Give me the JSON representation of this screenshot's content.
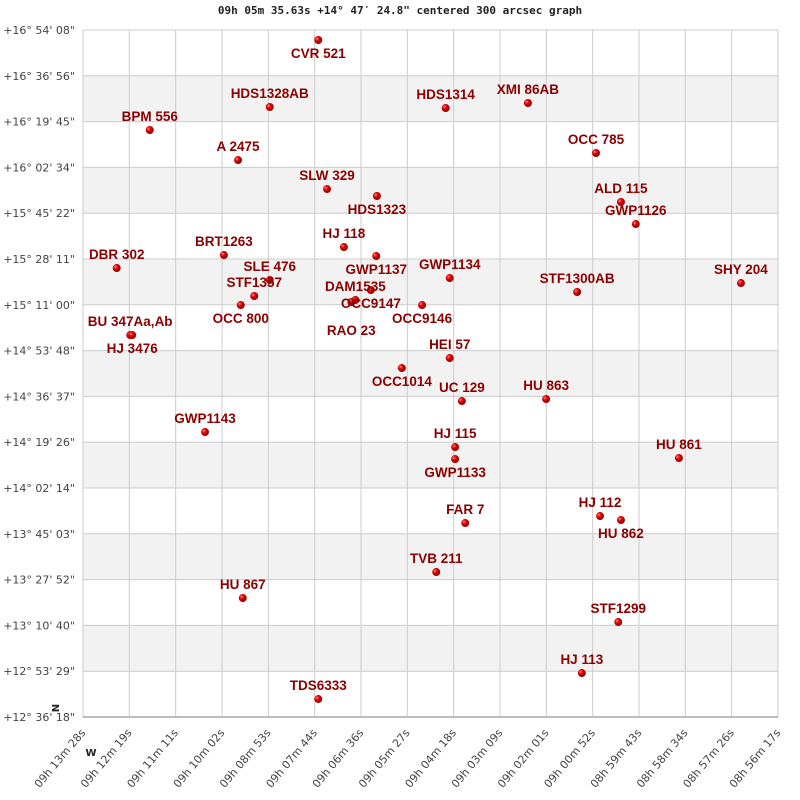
{
  "chart_data": {
    "type": "scatter",
    "title": "09h 05m 35.63s +14° 47′ 24.8\" centered 300 arcsec graph",
    "xlabel": "",
    "ylabel": "",
    "x_axis": {
      "unit": "RA",
      "range": [
        "09:13:28",
        "08:56:17"
      ],
      "reversed": true,
      "ticks": [
        "09h 13m 28s",
        "09h 12m 19s",
        "09h 11m 11s",
        "09h 10m 02s",
        "09h 08m 53s",
        "09h 07m 44s",
        "09h 06m 36s",
        "09h 05m 27s",
        "09h 04m 18s",
        "09h 03m 09s",
        "09h 02m 01s",
        "09h 00m 52s",
        "08h 59m 43s",
        "08h 58m 34s",
        "08h 57m 26s",
        "08h 56m 17s"
      ]
    },
    "y_axis": {
      "unit": "Dec",
      "range": [
        "+12:36:18",
        "+16:54:08"
      ],
      "ticks": [
        "+16° 54' 08\"",
        "+16° 36' 56\"",
        "+16° 19' 45\"",
        "+16° 02' 34\"",
        "+15° 45' 22\"",
        "+15° 28' 11\"",
        "+15° 11' 00\"",
        "+14° 53' 48\"",
        "+14° 36' 37\"",
        "+14° 19' 26\"",
        "+14° 02' 14\"",
        "+13° 45' 03\"",
        "+13° 27' 52\"",
        "+13° 10' 40\"",
        "+12° 53' 29\"",
        "+12° 36' 18\""
      ]
    },
    "grid": true,
    "compass": {
      "north": "N",
      "west": "W"
    },
    "colors": {
      "point": "#cc0000",
      "label": "#8b0000",
      "band": "#f2f2f2",
      "grid": "#cccccc"
    },
    "points": [
      {
        "label": "CVR 521",
        "ra": "09:07:39",
        "dec": "+16:50:23"
      },
      {
        "label": "HDS1328AB",
        "ra": "09:08:51",
        "dec": "+16:25:14"
      },
      {
        "label": "HDS1314",
        "ra": "09:04:30",
        "dec": "+16:24:51"
      },
      {
        "label": "XMI  86AB",
        "ra": "09:02:28",
        "dec": "+16:26:44"
      },
      {
        "label": "BPM 556",
        "ra": "09:11:49",
        "dec": "+16:16:36"
      },
      {
        "label": "A  2475",
        "ra": "09:09:38",
        "dec": "+16:05:20"
      },
      {
        "label": "OCC 785",
        "ra": "09:00:47",
        "dec": "+16:07:58"
      },
      {
        "label": "SLW 329",
        "ra": "09:07:26",
        "dec": "+15:54:27"
      },
      {
        "label": "HDS1323",
        "ra": "09:06:12",
        "dec": "+15:51:50"
      },
      {
        "label": "ALD 115",
        "ra": "09:00:10",
        "dec": "+15:49:35"
      },
      {
        "label": "GWP1126",
        "ra": "08:59:48",
        "dec": "+15:41:19"
      },
      {
        "label": "HJ  118",
        "ra": "09:07:01",
        "dec": "+15:32:41"
      },
      {
        "label": "GWP1137",
        "ra": "09:06:13",
        "dec": "+15:29:18"
      },
      {
        "label": "DBR 302",
        "ra": "09:12:38",
        "dec": "+15:24:48"
      },
      {
        "label": "BRT1263",
        "ra": "09:09:59",
        "dec": "+15:29:41"
      },
      {
        "label": "SLE 476",
        "ra": "09:08:51",
        "dec": "+15:20:18"
      },
      {
        "label": "STF1357",
        "ra": "09:09:14",
        "dec": "+15:14:18"
      },
      {
        "label": "OCC 800",
        "ra": "09:09:34",
        "dec": "+15:10:55"
      },
      {
        "label": "GWP1134",
        "ra": "09:04:24",
        "dec": "+15:21:03"
      },
      {
        "label": "OCC9147",
        "ra": "09:06:21",
        "dec": "+15:16:33"
      },
      {
        "label": "DAM1535",
        "ra": "09:06:44",
        "dec": "+15:12:48"
      },
      {
        "label": "RAO  23",
        "ra": "09:06:50",
        "dec": "+15:12:03"
      },
      {
        "label": "OCC9146",
        "ra": "09:05:05",
        "dec": "+15:10:55"
      },
      {
        "label": "STF1300AB",
        "ra": "09:01:15",
        "dec": "+15:15:48"
      },
      {
        "label": "SHY 204",
        "ra": "08:57:12",
        "dec": "+15:19:10"
      },
      {
        "label": "BU  347Aa,Ab",
        "ra": "09:12:18",
        "dec": "+14:59:39"
      },
      {
        "label": "HJ 3476",
        "ra": "09:12:15",
        "dec": "+14:59:39"
      },
      {
        "label": "HEI  57",
        "ra": "09:04:24",
        "dec": "+14:51:01"
      },
      {
        "label": "OCC1014",
        "ra": "09:05:35",
        "dec": "+14:47:16"
      },
      {
        "label": "UC  129",
        "ra": "09:04:06",
        "dec": "+14:34:53"
      },
      {
        "label": "HU  863",
        "ra": "09:02:01",
        "dec": "+14:35:38"
      },
      {
        "label": "GWP1143",
        "ra": "09:10:27",
        "dec": "+14:23:15"
      },
      {
        "label": "HJ  115",
        "ra": "09:04:16",
        "dec": "+14:17:37"
      },
      {
        "label": "GWP1133",
        "ra": "09:04:16",
        "dec": "+14:13:07"
      },
      {
        "label": "HU  861",
        "ra": "08:58:44",
        "dec": "+14:13:29"
      },
      {
        "label": "HJ  112",
        "ra": "09:00:41",
        "dec": "+13:51:43"
      },
      {
        "label": "HU  862",
        "ra": "09:00:10",
        "dec": "+13:50:13"
      },
      {
        "label": "FAR   7",
        "ra": "09:04:01",
        "dec": "+13:49:06"
      },
      {
        "label": "TVB 211",
        "ra": "09:04:44",
        "dec": "+13:30:42"
      },
      {
        "label": "HU  867",
        "ra": "09:09:31",
        "dec": "+13:20:57"
      },
      {
        "label": "STF1299",
        "ra": "09:00:14",
        "dec": "+13:11:56"
      },
      {
        "label": "HJ  113",
        "ra": "09:01:08",
        "dec": "+12:52:48"
      },
      {
        "label": "TDS6333",
        "ra": "09:07:39",
        "dec": "+12:43:02"
      }
    ]
  }
}
